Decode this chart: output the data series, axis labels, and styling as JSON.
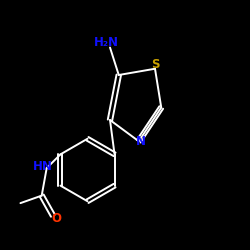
{
  "bg_color": "#000000",
  "bond_color": "#ffffff",
  "N_color": "#1010ff",
  "S_color": "#c8a000",
  "O_color": "#ff3300",
  "H2N_label": "H₂N",
  "N_label": "N",
  "S_label": "S",
  "NH_label": "HN",
  "O_label": "O",
  "figsize": [
    2.5,
    2.5
  ],
  "dpi": 100
}
